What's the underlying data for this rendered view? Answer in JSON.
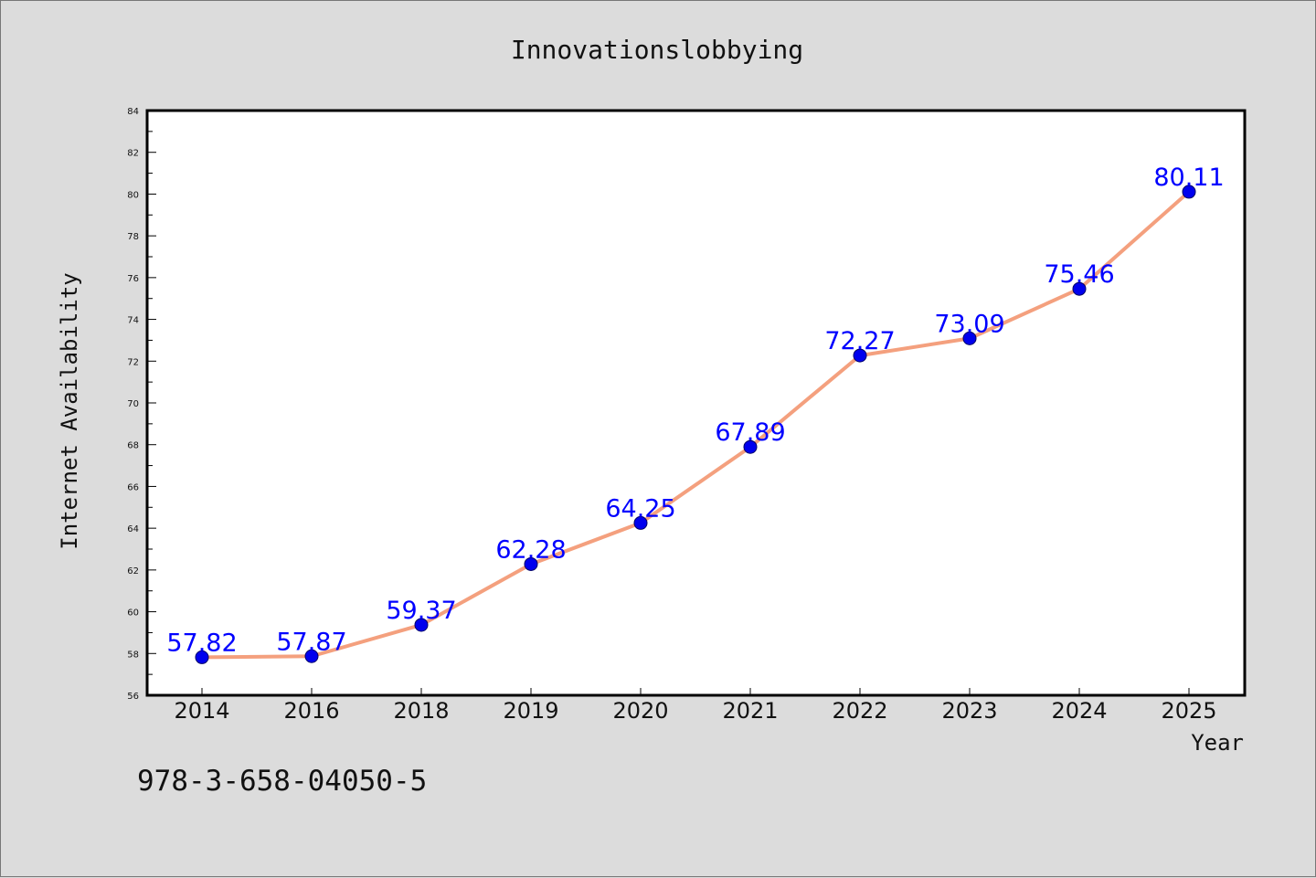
{
  "chart_data": {
    "type": "line",
    "title": "Innovationslobbying",
    "xlabel": "Year",
    "ylabel": "Internet Availability",
    "categories": [
      "2014",
      "2016",
      "2018",
      "2019",
      "2020",
      "2021",
      "2022",
      "2023",
      "2024",
      "2025"
    ],
    "series": [
      {
        "values": [
          57.82,
          57.87,
          59.37,
          62.28,
          64.25,
          67.89,
          72.27,
          73.09,
          75.46,
          80.11
        ],
        "labels": [
          "57.82",
          "57.87",
          "59.37",
          "62.28",
          "64.25",
          "67.89",
          "72.27",
          "73.09",
          "75.46",
          "80.11"
        ],
        "line_color": "#f4a07e",
        "marker_color": "#0000ee"
      }
    ],
    "ylim": [
      56,
      84
    ],
    "yticks": [
      56,
      58,
      60,
      62,
      64,
      66,
      68,
      70,
      72,
      74,
      76,
      78,
      80,
      82,
      84
    ],
    "grid": false,
    "legend": "none",
    "annotation": "978-3-658-04050-5",
    "colors": {
      "background": "#dcdcdc",
      "plot_background": "#ffffff",
      "label_color": "#0000ff"
    }
  }
}
